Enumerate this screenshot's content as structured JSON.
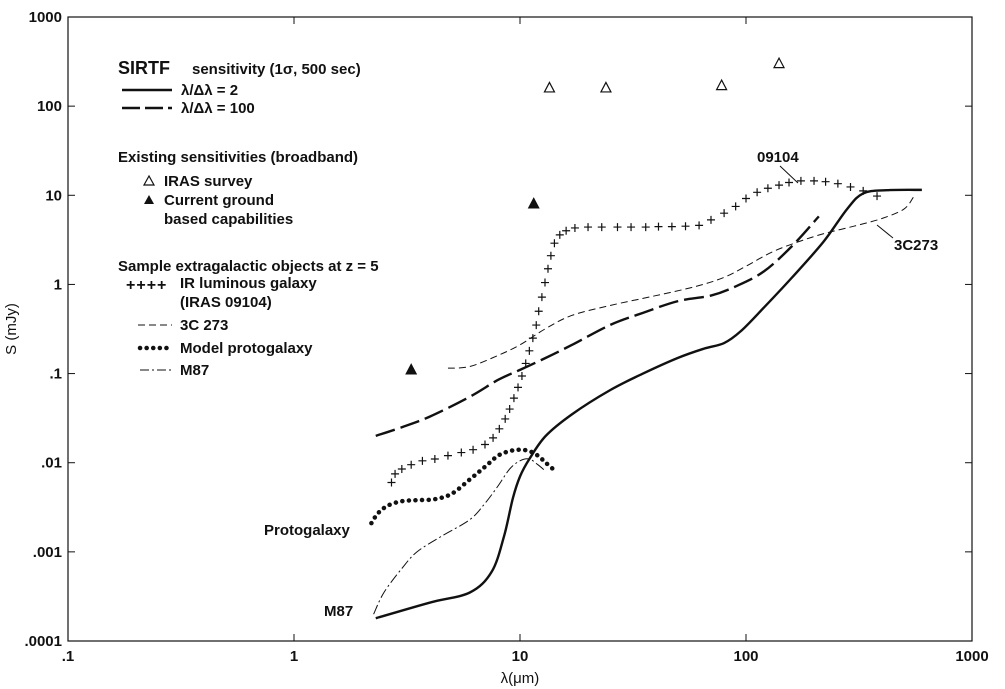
{
  "chart_data": {
    "type": "line",
    "xscale": "log",
    "yscale": "log",
    "xlim": [
      0.1,
      1000
    ],
    "ylim": [
      0.0001,
      1000
    ],
    "xlabel": "λ(μm)",
    "ylabel": "S (mJy)",
    "xticks": [
      {
        "value": 0.1,
        "label": ".1"
      },
      {
        "value": 1,
        "label": "1"
      },
      {
        "value": 10,
        "label": "10"
      },
      {
        "value": 100,
        "label": "100"
      },
      {
        "value": 1000,
        "label": "1000"
      }
    ],
    "yticks": [
      {
        "value": 0.0001,
        "label": ".0001"
      },
      {
        "value": 0.001,
        "label": ".001"
      },
      {
        "value": 0.01,
        "label": ".01"
      },
      {
        "value": 0.1,
        "label": ".1"
      },
      {
        "value": 1,
        "label": "1"
      },
      {
        "value": 10,
        "label": "10"
      },
      {
        "value": 100,
        "label": "100"
      },
      {
        "value": 1000,
        "label": "1000"
      }
    ],
    "legend": {
      "sirtf_title": "SIRTF",
      "sirtf_subtitle": "sensitivity (1σ, 500 sec)",
      "sirtf_r2": "λ/Δλ = 2",
      "sirtf_r100": "λ/Δλ = 100",
      "existing_title": "Existing sensitivities (broadband)",
      "iras_survey": "IRAS survey",
      "ground_line1": "Current ground",
      "ground_line2": "based capabilities",
      "sample_title": "Sample extragalactic objects at z = 5",
      "ir_galaxy_line1": "IR luminous galaxy",
      "ir_galaxy_line2": "(IRAS 09104)",
      "c273": "3C 273",
      "protogalaxy": "Model protogalaxy",
      "m87": "M87"
    },
    "annotations": {
      "label_09104": "09104",
      "label_3c273": "3C273",
      "label_protogalaxy": "Protogalaxy",
      "label_m87": "M87"
    },
    "series": [
      {
        "key": "sirtf_r2",
        "style": "solid",
        "points": [
          [
            2.3,
            0.00018
          ],
          [
            4,
            0.00027
          ],
          [
            6,
            0.00035
          ],
          [
            7.5,
            0.0006
          ],
          [
            8.5,
            0.0015
          ],
          [
            9.3,
            0.004
          ],
          [
            10,
            0.007
          ],
          [
            11,
            0.011
          ],
          [
            13,
            0.02
          ],
          [
            17,
            0.035
          ],
          [
            25,
            0.065
          ],
          [
            35,
            0.1
          ],
          [
            50,
            0.15
          ],
          [
            65,
            0.19
          ],
          [
            80,
            0.22
          ],
          [
            95,
            0.3
          ],
          [
            120,
            0.55
          ],
          [
            160,
            1.2
          ],
          [
            220,
            3
          ],
          [
            280,
            7
          ],
          [
            330,
            10.5
          ],
          [
            420,
            11.4
          ],
          [
            600,
            11.5
          ]
        ]
      },
      {
        "key": "sirtf_r100",
        "style": "longdash",
        "points": [
          [
            2.3,
            0.02
          ],
          [
            3,
            0.025
          ],
          [
            4,
            0.033
          ],
          [
            6,
            0.055
          ],
          [
            8,
            0.085
          ],
          [
            10,
            0.11
          ],
          [
            13,
            0.15
          ],
          [
            17,
            0.21
          ],
          [
            25,
            0.35
          ],
          [
            35,
            0.48
          ],
          [
            50,
            0.65
          ],
          [
            70,
            0.75
          ],
          [
            90,
            0.95
          ],
          [
            120,
            1.4
          ],
          [
            160,
            2.7
          ],
          [
            210,
            5.8
          ]
        ]
      },
      {
        "key": "c273",
        "style": "shortdash",
        "points": [
          [
            4.8,
            0.115
          ],
          [
            6,
            0.12
          ],
          [
            8,
            0.16
          ],
          [
            10,
            0.21
          ],
          [
            13,
            0.32
          ],
          [
            17,
            0.45
          ],
          [
            25,
            0.58
          ],
          [
            40,
            0.75
          ],
          [
            60,
            0.95
          ],
          [
            80,
            1.2
          ],
          [
            100,
            1.6
          ],
          [
            130,
            2.3
          ],
          [
            170,
            3
          ],
          [
            220,
            3.7
          ],
          [
            300,
            4.5
          ],
          [
            400,
            5.5
          ],
          [
            500,
            7
          ],
          [
            550,
            9.5
          ]
        ]
      },
      {
        "key": "ir_galaxy",
        "style": "plus",
        "points": [
          [
            2.7,
            0.006
          ],
          [
            2.8,
            0.0075
          ],
          [
            3,
            0.0085
          ],
          [
            3.3,
            0.0095
          ],
          [
            3.7,
            0.0105
          ],
          [
            4.2,
            0.011
          ],
          [
            4.8,
            0.012
          ],
          [
            5.5,
            0.013
          ],
          [
            6.2,
            0.014
          ],
          [
            7,
            0.016
          ],
          [
            7.6,
            0.019
          ],
          [
            8.1,
            0.024
          ],
          [
            8.6,
            0.031
          ],
          [
            9,
            0.04
          ],
          [
            9.4,
            0.053
          ],
          [
            9.8,
            0.07
          ],
          [
            10.2,
            0.094
          ],
          [
            10.6,
            0.13
          ],
          [
            11,
            0.18
          ],
          [
            11.4,
            0.25
          ],
          [
            11.8,
            0.35
          ],
          [
            12.1,
            0.5
          ],
          [
            12.5,
            0.72
          ],
          [
            12.9,
            1.05
          ],
          [
            13.3,
            1.5
          ],
          [
            13.7,
            2.1
          ],
          [
            14.2,
            2.9
          ],
          [
            15,
            3.6
          ],
          [
            16,
            4
          ],
          [
            17.5,
            4.3
          ],
          [
            20,
            4.4
          ],
          [
            23,
            4.4
          ],
          [
            27,
            4.4
          ],
          [
            31,
            4.4
          ],
          [
            36,
            4.4
          ],
          [
            41,
            4.45
          ],
          [
            47,
            4.45
          ],
          [
            54,
            4.5
          ],
          [
            62,
            4.6
          ],
          [
            70,
            5.3
          ],
          [
            80,
            6.3
          ],
          [
            90,
            7.5
          ],
          [
            100,
            9.2
          ],
          [
            112,
            10.8
          ],
          [
            125,
            12
          ],
          [
            140,
            13
          ],
          [
            155,
            13.9
          ],
          [
            175,
            14.5
          ],
          [
            200,
            14.5
          ],
          [
            225,
            14.2
          ],
          [
            255,
            13.5
          ],
          [
            290,
            12.4
          ],
          [
            330,
            11.2
          ],
          [
            380,
            9.8
          ]
        ]
      },
      {
        "key": "protogalaxy",
        "style": "dotted",
        "points": [
          [
            2.2,
            0.0021
          ],
          [
            2.35,
            0.0027
          ],
          [
            2.6,
            0.0033
          ],
          [
            3,
            0.0037
          ],
          [
            3.5,
            0.0038
          ],
          [
            4.2,
            0.0039
          ],
          [
            5,
            0.0045
          ],
          [
            6,
            0.0065
          ],
          [
            7,
            0.009
          ],
          [
            8,
            0.012
          ],
          [
            9,
            0.0135
          ],
          [
            10,
            0.014
          ],
          [
            11,
            0.0135
          ],
          [
            12,
            0.012
          ],
          [
            13,
            0.01
          ],
          [
            14,
            0.0085
          ]
        ]
      },
      {
        "key": "m87",
        "style": "dashdot",
        "points": [
          [
            2.25,
            0.0002
          ],
          [
            2.5,
            0.00035
          ],
          [
            3,
            0.00065
          ],
          [
            3.5,
            0.001
          ],
          [
            4.5,
            0.0015
          ],
          [
            6,
            0.0023
          ],
          [
            7,
            0.0035
          ],
          [
            8,
            0.0055
          ],
          [
            9,
            0.0085
          ],
          [
            10,
            0.0105
          ],
          [
            11,
            0.011
          ],
          [
            12,
            0.0095
          ],
          [
            13,
            0.008
          ]
        ]
      },
      {
        "key": "iras",
        "style": "triangle-open",
        "points": [
          [
            13.5,
            160
          ],
          [
            24,
            160
          ],
          [
            78,
            170
          ],
          [
            140,
            300
          ]
        ]
      },
      {
        "key": "ground",
        "style": "triangle-filled",
        "points": [
          [
            3.3,
            0.11
          ],
          [
            11.5,
            8
          ]
        ]
      }
    ]
  }
}
